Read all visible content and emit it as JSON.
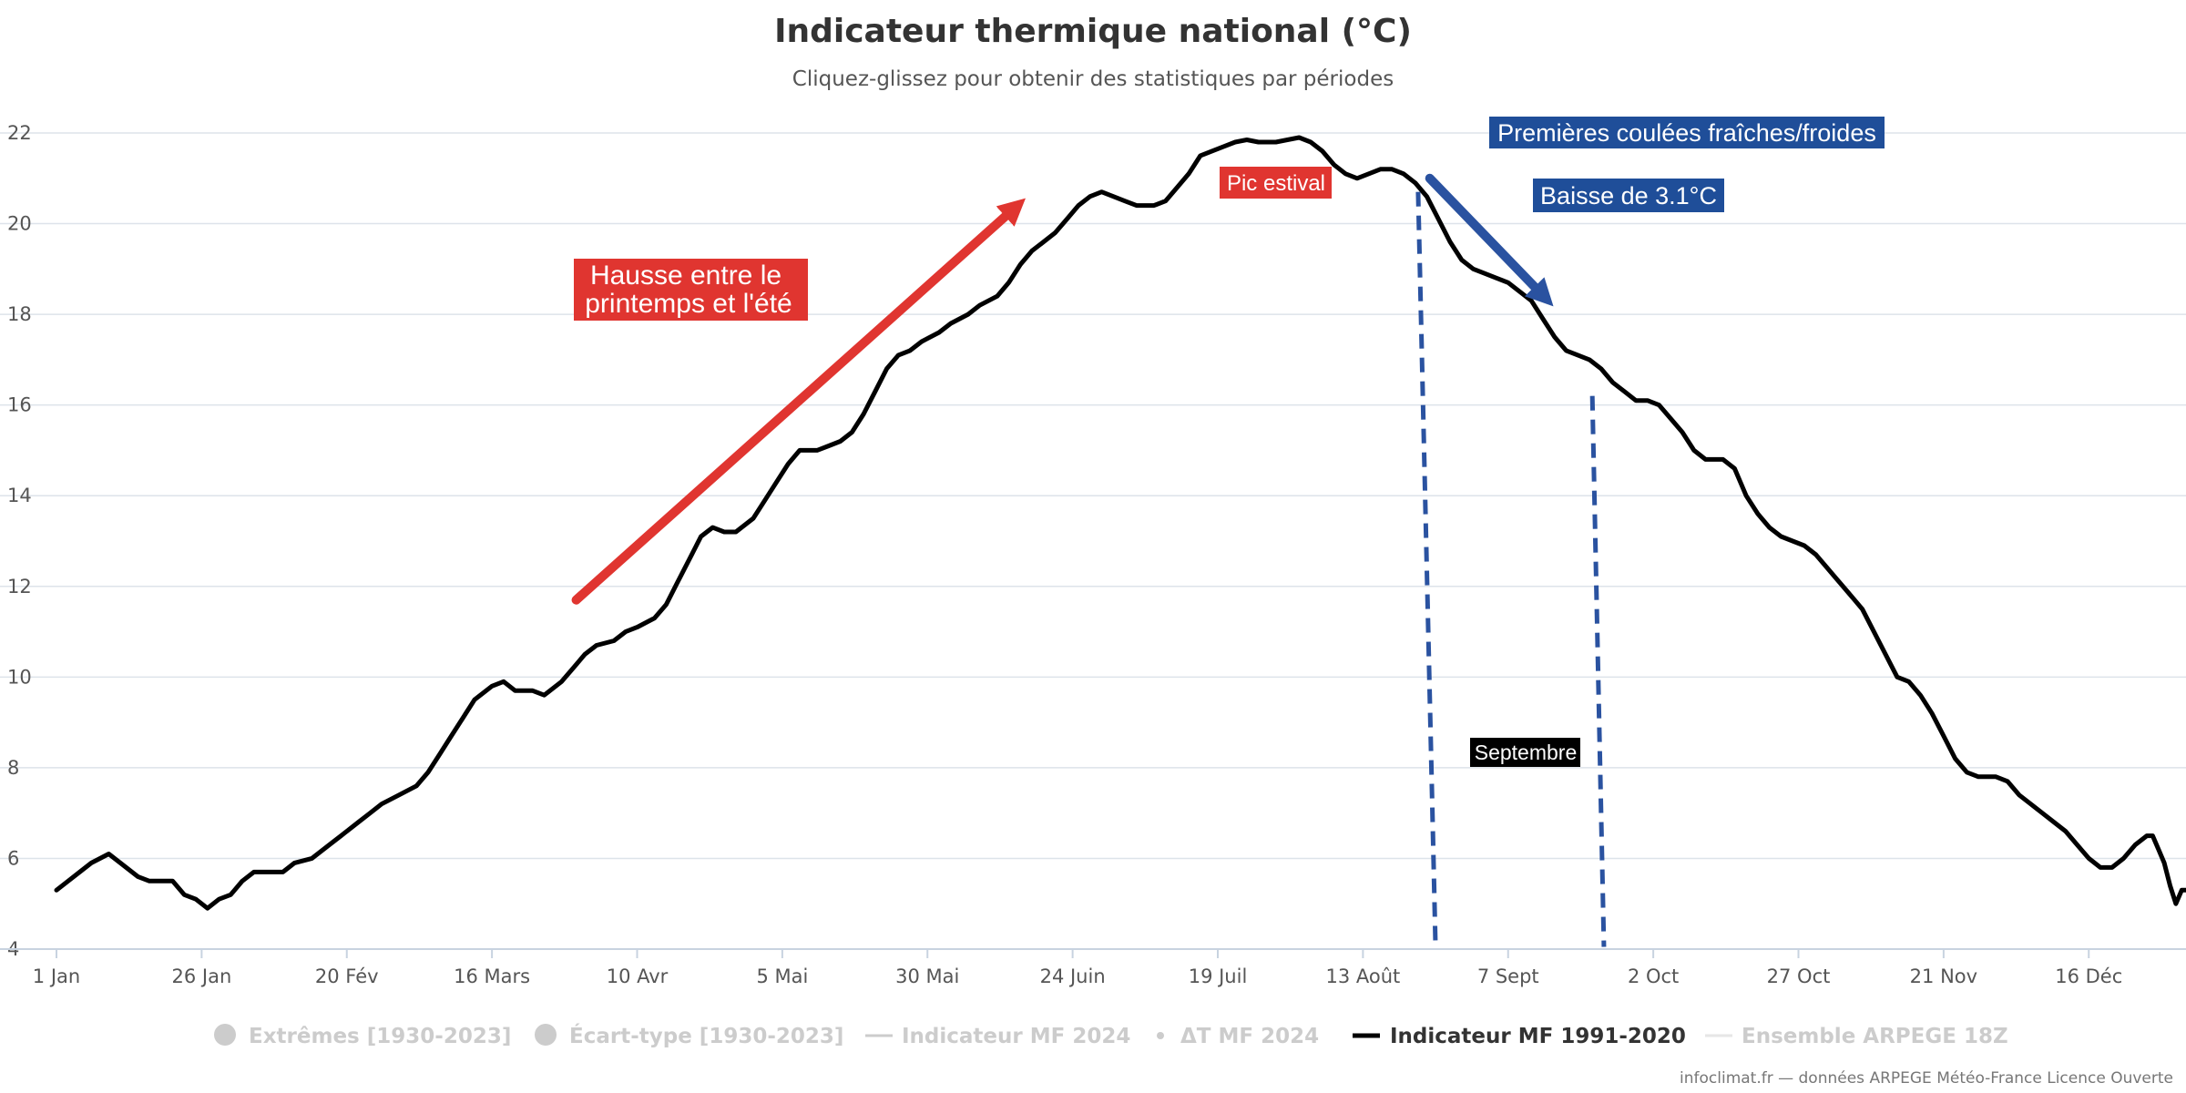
{
  "chart": {
    "title": "Indicateur thermique national (°C)",
    "subtitle": "Cliquez-glissez pour obtenir des statistiques par périodes",
    "credits": "infoclimat.fr — données ARPEGE Météo-France Licence Ouverte"
  },
  "legend": [
    {
      "label": "Extrêmes [1930-2023]",
      "symbol": "circle",
      "active": false
    },
    {
      "label": "Écart-type [1930-2023]",
      "symbol": "circle",
      "active": false
    },
    {
      "label": "Indicateur MF 2024",
      "symbol": "line",
      "active": false
    },
    {
      "label": "ΔT MF 2024",
      "symbol": "dot",
      "active": false
    },
    {
      "label": "Indicateur MF 1991-2020",
      "symbol": "line-bold",
      "active": true
    },
    {
      "label": "Ensemble ARPEGE 18Z",
      "symbol": "line-faint",
      "active": false
    }
  ],
  "annotations": {
    "rise": {
      "text_lines": [
        "Hausse entre le",
        "printemps et l'été"
      ],
      "color": "#e03530"
    },
    "peak": {
      "text": "Pic estival",
      "color": "#e03530"
    },
    "first_cold": {
      "text": "Premières coulées fraîches/froides",
      "color": "#1f4e99"
    },
    "drop": {
      "text": "Baisse de 3.1°C",
      "color": "#1f4e99"
    },
    "september": {
      "text": "Septembre",
      "color": "#000000"
    }
  },
  "colors": {
    "series": "#000000",
    "red_arrow": "#e03530",
    "blue_arrow": "#2a52a0",
    "dashed": "#2a52a0"
  },
  "chart_data": {
    "type": "line",
    "x_unit": "day of year",
    "xlim": [
      1,
      366
    ],
    "ylim": [
      4,
      22
    ],
    "grid": true,
    "legend_position": "bottom",
    "x_ticks": [
      {
        "day": 1,
        "label": "1 Jan"
      },
      {
        "day": 26,
        "label": "26 Jan"
      },
      {
        "day": 51,
        "label": "20 Fév"
      },
      {
        "day": 76,
        "label": "16 Mars"
      },
      {
        "day": 101,
        "label": "10 Avr"
      },
      {
        "day": 126,
        "label": "5 Mai"
      },
      {
        "day": 151,
        "label": "30 Mai"
      },
      {
        "day": 176,
        "label": "24 Juin"
      },
      {
        "day": 201,
        "label": "19 Juil"
      },
      {
        "day": 226,
        "label": "13 Août"
      },
      {
        "day": 251,
        "label": "7 Sept"
      },
      {
        "day": 276,
        "label": "2 Oct"
      },
      {
        "day": 301,
        "label": "27 Oct"
      },
      {
        "day": 326,
        "label": "21 Nov"
      },
      {
        "day": 351,
        "label": "16 Déc"
      }
    ],
    "y_ticks": [
      4,
      6,
      8,
      10,
      12,
      14,
      16,
      18,
      20,
      22
    ],
    "series": [
      {
        "name": "Indicateur MF 1991-2020",
        "color": "#000000",
        "points": [
          [
            1,
            5.3
          ],
          [
            3,
            5.5
          ],
          [
            5,
            5.7
          ],
          [
            7,
            5.9
          ],
          [
            10,
            6.1
          ],
          [
            12,
            5.9
          ],
          [
            15,
            5.6
          ],
          [
            17,
            5.5
          ],
          [
            21,
            5.5
          ],
          [
            23,
            5.2
          ],
          [
            25,
            5.1
          ],
          [
            27,
            4.9
          ],
          [
            29,
            5.1
          ],
          [
            31,
            5.2
          ],
          [
            33,
            5.5
          ],
          [
            35,
            5.7
          ],
          [
            40,
            5.7
          ],
          [
            42,
            5.9
          ],
          [
            45,
            6.0
          ],
          [
            48,
            6.3
          ],
          [
            50,
            6.5
          ],
          [
            53,
            6.8
          ],
          [
            55,
            7.0
          ],
          [
            57,
            7.2
          ],
          [
            60,
            7.4
          ],
          [
            63,
            7.6
          ],
          [
            65,
            7.9
          ],
          [
            67,
            8.3
          ],
          [
            69,
            8.7
          ],
          [
            71,
            9.1
          ],
          [
            73,
            9.5
          ],
          [
            76,
            9.8
          ],
          [
            78,
            9.9
          ],
          [
            80,
            9.7
          ],
          [
            83,
            9.7
          ],
          [
            85,
            9.6
          ],
          [
            88,
            9.9
          ],
          [
            90,
            10.2
          ],
          [
            92,
            10.5
          ],
          [
            94,
            10.7
          ],
          [
            97,
            10.8
          ],
          [
            99,
            11.0
          ],
          [
            101,
            11.1
          ],
          [
            104,
            11.3
          ],
          [
            106,
            11.6
          ],
          [
            108,
            12.1
          ],
          [
            110,
            12.6
          ],
          [
            112,
            13.1
          ],
          [
            114,
            13.3
          ],
          [
            116,
            13.2
          ],
          [
            118,
            13.2
          ],
          [
            121,
            13.5
          ],
          [
            123,
            13.9
          ],
          [
            125,
            14.3
          ],
          [
            127,
            14.7
          ],
          [
            129,
            15.0
          ],
          [
            132,
            15.0
          ],
          [
            134,
            15.1
          ],
          [
            136,
            15.2
          ],
          [
            138,
            15.4
          ],
          [
            140,
            15.8
          ],
          [
            142,
            16.3
          ],
          [
            144,
            16.8
          ],
          [
            146,
            17.1
          ],
          [
            148,
            17.2
          ],
          [
            150,
            17.4
          ],
          [
            153,
            17.6
          ],
          [
            155,
            17.8
          ],
          [
            158,
            18.0
          ],
          [
            160,
            18.2
          ],
          [
            163,
            18.4
          ],
          [
            165,
            18.7
          ],
          [
            167,
            19.1
          ],
          [
            169,
            19.4
          ],
          [
            171,
            19.6
          ],
          [
            173,
            19.8
          ],
          [
            175,
            20.1
          ],
          [
            177,
            20.4
          ],
          [
            179,
            20.6
          ],
          [
            181,
            20.7
          ],
          [
            183,
            20.6
          ],
          [
            185,
            20.5
          ],
          [
            187,
            20.4
          ],
          [
            190,
            20.4
          ],
          [
            192,
            20.5
          ],
          [
            194,
            20.8
          ],
          [
            196,
            21.1
          ],
          [
            198,
            21.5
          ],
          [
            200,
            21.6
          ],
          [
            202,
            21.7
          ],
          [
            204,
            21.8
          ],
          [
            206,
            21.85
          ],
          [
            208,
            21.8
          ],
          [
            211,
            21.8
          ],
          [
            213,
            21.85
          ],
          [
            215,
            21.9
          ],
          [
            217,
            21.8
          ],
          [
            219,
            21.6
          ],
          [
            221,
            21.3
          ],
          [
            223,
            21.1
          ],
          [
            225,
            21.0
          ],
          [
            227,
            21.1
          ],
          [
            229,
            21.2
          ],
          [
            231,
            21.2
          ],
          [
            233,
            21.1
          ],
          [
            235,
            20.9
          ],
          [
            237,
            20.6
          ],
          [
            239,
            20.1
          ],
          [
            241,
            19.6
          ],
          [
            243,
            19.2
          ],
          [
            245,
            19.0
          ],
          [
            247,
            18.9
          ],
          [
            249,
            18.8
          ],
          [
            251,
            18.7
          ],
          [
            253,
            18.5
          ],
          [
            255,
            18.3
          ],
          [
            257,
            17.9
          ],
          [
            259,
            17.5
          ],
          [
            261,
            17.2
          ],
          [
            263,
            17.1
          ],
          [
            265,
            17.0
          ],
          [
            267,
            16.8
          ],
          [
            269,
            16.5
          ],
          [
            271,
            16.3
          ],
          [
            273,
            16.1
          ],
          [
            275,
            16.1
          ],
          [
            277,
            16.0
          ],
          [
            279,
            15.7
          ],
          [
            281,
            15.4
          ],
          [
            283,
            15.0
          ],
          [
            285,
            14.8
          ],
          [
            288,
            14.8
          ],
          [
            290,
            14.6
          ],
          [
            292,
            14.0
          ],
          [
            294,
            13.6
          ],
          [
            296,
            13.3
          ],
          [
            298,
            13.1
          ],
          [
            300,
            13.0
          ],
          [
            302,
            12.9
          ],
          [
            304,
            12.7
          ],
          [
            306,
            12.4
          ],
          [
            308,
            12.1
          ],
          [
            310,
            11.8
          ],
          [
            312,
            11.5
          ],
          [
            314,
            11.0
          ],
          [
            316,
            10.5
          ],
          [
            318,
            10.0
          ],
          [
            320,
            9.9
          ],
          [
            322,
            9.6
          ],
          [
            324,
            9.2
          ],
          [
            326,
            8.7
          ],
          [
            328,
            8.2
          ],
          [
            330,
            7.9
          ],
          [
            332,
            7.8
          ],
          [
            335,
            7.8
          ],
          [
            337,
            7.7
          ],
          [
            339,
            7.4
          ],
          [
            341,
            7.2
          ],
          [
            343,
            7.0
          ],
          [
            345,
            6.8
          ],
          [
            347,
            6.6
          ],
          [
            349,
            6.3
          ],
          [
            351,
            6.0
          ],
          [
            353,
            5.8
          ],
          [
            355,
            5.8
          ],
          [
            357,
            6.0
          ],
          [
            359,
            6.3
          ],
          [
            361,
            6.5
          ],
          [
            362,
            6.5
          ],
          [
            363,
            6.2
          ],
          [
            364,
            5.9
          ],
          [
            365,
            5.4
          ],
          [
            366,
            5.0
          ],
          [
            367,
            5.3
          ],
          [
            368,
            5.3
          ]
        ]
      }
    ]
  }
}
